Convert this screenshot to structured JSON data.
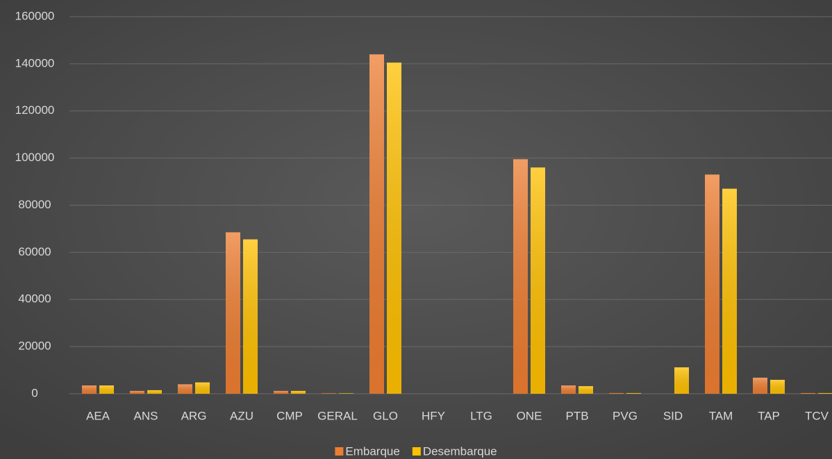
{
  "chart_data": {
    "type": "bar",
    "categories": [
      "AEA",
      "ANS",
      "ARG",
      "AZU",
      "CMP",
      "GERAL",
      "GLO",
      "HFY",
      "LTG",
      "ONE",
      "PTB",
      "PVG",
      "SID",
      "TAM",
      "TAP",
      "TCV"
    ],
    "series": [
      {
        "name": "Embarque",
        "color": "#ed7d31",
        "values": [
          3500,
          1200,
          4000,
          68500,
          1200,
          200,
          144000,
          0,
          0,
          99500,
          3500,
          300,
          0,
          93000,
          6800,
          300
        ]
      },
      {
        "name": "Desembarque",
        "color": "#ffc000",
        "values": [
          3500,
          1500,
          4800,
          65500,
          1200,
          200,
          140500,
          0,
          0,
          96000,
          3200,
          300,
          11200,
          87000,
          5900,
          300
        ]
      }
    ],
    "ylim": [
      0,
      160000
    ],
    "yticks": [
      0,
      20000,
      40000,
      60000,
      80000,
      100000,
      120000,
      140000,
      160000
    ],
    "grid": true,
    "legend": "bottom"
  }
}
